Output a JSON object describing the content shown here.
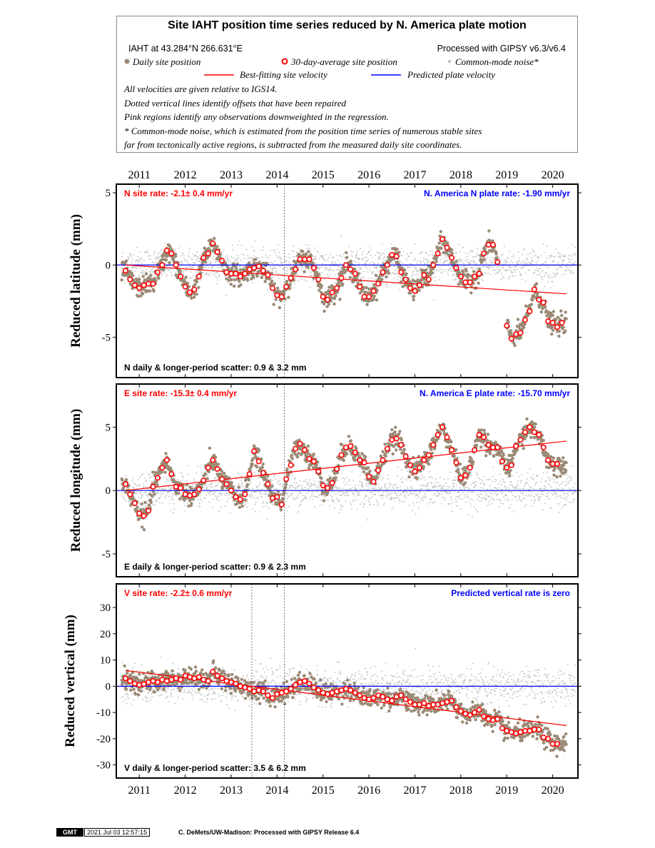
{
  "header": {
    "title": "Site IAHT position time series reduced by N. America plate motion",
    "site_location": "IAHT at 43.284°N 266.631°E",
    "processing": "Processed with GIPSY v6.3/v6.4",
    "legend": {
      "daily": "Daily site position",
      "average": "30-day-average site position",
      "common_mode": "Common-mode noise*",
      "best_fit": "Best-fitting site velocity",
      "predicted": "Predicted plate velocity"
    },
    "notes": [
      "All velocities are given relative to IGS14.",
      "Dotted vertical lines identify offsets that have been repaired",
      "Pink regions identify any observations downweighted in the regression.",
      "* Common-mode noise, which is estimated from the position time series of numerous stable sites",
      "far from tectonically active regions, is subtracted from the measured daily site coordinates."
    ]
  },
  "colors": {
    "daily": "#9b8a76",
    "common_mode": "#bdbdbd",
    "average_stroke": "#ff0000",
    "best_fit": "#ff0000",
    "predicted": "#0000ff",
    "rate_label": "#ff0000",
    "plate_label": "#0000ff"
  },
  "chart_data": [
    {
      "type": "scatter",
      "component": "N",
      "ylabel": "Reduced latitude (mm)",
      "site_rate": "N site rate:  -2.1± 0.4 mm/yr",
      "plate_rate": "N. America N plate rate: -1.90 mm/yr",
      "scatter": "N daily & longer-period scatter:   0.9 &   3.2 mm",
      "xlim": [
        2010.5,
        2020.55
      ],
      "ylim": [
        -7.8,
        5.6
      ],
      "yticks": [
        -5,
        0,
        5
      ],
      "xticks": [
        2011,
        2012,
        2013,
        2014,
        2015,
        2016,
        2017,
        2018,
        2019,
        2020
      ],
      "offsets": [
        2014.16
      ],
      "best_fit": [
        [
          2010.7,
          0.0
        ],
        [
          2020.3,
          -2.0
        ]
      ],
      "predicted": [
        [
          2010.5,
          0.0
        ],
        [
          2020.55,
          0.0
        ]
      ],
      "averages": [
        [
          2010.7,
          -0.4
        ],
        [
          2010.8,
          -1.0
        ],
        [
          2010.9,
          -1.4
        ],
        [
          2011.0,
          -1.6
        ],
        [
          2011.1,
          -1.4
        ],
        [
          2011.2,
          -1.3
        ],
        [
          2011.3,
          -1.3
        ],
        [
          2011.4,
          -0.5
        ],
        [
          2011.5,
          0.0
        ],
        [
          2011.6,
          1.0
        ],
        [
          2011.7,
          0.8
        ],
        [
          2011.8,
          0.0
        ],
        [
          2011.9,
          -0.8
        ],
        [
          2012.0,
          -1.5
        ],
        [
          2012.1,
          -1.9
        ],
        [
          2012.2,
          -1.7
        ],
        [
          2012.3,
          -0.8
        ],
        [
          2012.4,
          0.5
        ],
        [
          2012.5,
          0.8
        ],
        [
          2012.6,
          1.5
        ],
        [
          2012.7,
          0.9
        ],
        [
          2012.8,
          0.3
        ],
        [
          2012.9,
          -0.5
        ],
        [
          2013.0,
          -0.6
        ],
        [
          2013.1,
          -0.6
        ],
        [
          2013.2,
          -0.8
        ],
        [
          2013.3,
          -0.6
        ],
        [
          2013.4,
          -0.3
        ],
        [
          2013.5,
          -0.2
        ],
        [
          2013.6,
          -0.1
        ],
        [
          2013.7,
          -0.4
        ],
        [
          2013.8,
          -0.7
        ],
        [
          2013.9,
          -1.6
        ],
        [
          2014.0,
          -2.1
        ],
        [
          2014.1,
          -2.2
        ],
        [
          2014.2,
          -1.5
        ],
        [
          2014.3,
          -0.9
        ],
        [
          2014.4,
          -0.3
        ],
        [
          2014.5,
          0.4
        ],
        [
          2014.6,
          0.4
        ],
        [
          2014.7,
          0.4
        ],
        [
          2014.8,
          -0.2
        ],
        [
          2014.9,
          -1.0
        ],
        [
          2015.0,
          -2.2
        ],
        [
          2015.1,
          -2.4
        ],
        [
          2015.2,
          -1.9
        ],
        [
          2015.3,
          -1.6
        ],
        [
          2015.4,
          -0.9
        ],
        [
          2015.5,
          0.0
        ],
        [
          2015.6,
          -0.3
        ],
        [
          2015.7,
          -0.6
        ],
        [
          2015.8,
          -1.5
        ],
        [
          2015.9,
          -2.2
        ],
        [
          2016.0,
          -2.2
        ],
        [
          2016.1,
          -1.8
        ],
        [
          2016.2,
          -1.3
        ],
        [
          2016.3,
          -0.5
        ],
        [
          2016.4,
          0.0
        ],
        [
          2016.5,
          0.7
        ],
        [
          2016.6,
          0.6
        ],
        [
          2016.7,
          -0.5
        ],
        [
          2016.8,
          -1.0
        ],
        [
          2016.9,
          -1.6
        ],
        [
          2017.0,
          -1.8
        ],
        [
          2017.1,
          -1.4
        ],
        [
          2017.2,
          -0.7
        ],
        [
          2017.3,
          -1.0
        ],
        [
          2017.4,
          0.0
        ],
        [
          2017.5,
          0.8
        ],
        [
          2017.6,
          1.8
        ],
        [
          2017.7,
          1.2
        ],
        [
          2017.8,
          0.5
        ],
        [
          2017.9,
          -0.2
        ],
        [
          2018.0,
          -0.8
        ],
        [
          2018.1,
          -1.2
        ],
        [
          2018.2,
          -1.2
        ],
        [
          2018.3,
          -0.8
        ],
        [
          2018.4,
          -0.6
        ],
        [
          2018.5,
          0.8
        ],
        [
          2018.6,
          1.4
        ],
        [
          2018.7,
          1.4
        ],
        [
          2018.8,
          0.2
        ],
        [
          2019.0,
          -4.2
        ],
        [
          2019.1,
          -5.1
        ],
        [
          2019.2,
          -4.8
        ],
        [
          2019.3,
          -4.7
        ],
        [
          2019.4,
          -3.8
        ],
        [
          2019.5,
          -3.2
        ],
        [
          2019.6,
          -1.7
        ],
        [
          2019.7,
          -2.4
        ],
        [
          2019.8,
          -2.6
        ],
        [
          2019.9,
          -3.9
        ],
        [
          2020.0,
          -4.0
        ],
        [
          2020.1,
          -4.3
        ],
        [
          2020.2,
          -4.0
        ]
      ]
    },
    {
      "type": "scatter",
      "component": "E",
      "ylabel": "Reduced longitude (mm)",
      "site_rate": "E site rate:  -15.3± 0.4 mm/yr",
      "plate_rate": "N. America E plate rate: -15.70 mm/yr",
      "scatter": "E daily & longer-period scatter:   0.9 &   2.3 mm",
      "xlim": [
        2010.5,
        2020.55
      ],
      "ylim": [
        -6.8,
        8.4
      ],
      "yticks": [
        -5,
        0,
        5
      ],
      "xticks": [
        2011,
        2012,
        2013,
        2014,
        2015,
        2016,
        2017,
        2018,
        2019,
        2020
      ],
      "offsets": [
        2014.16
      ],
      "best_fit": [
        [
          2010.7,
          0.0
        ],
        [
          2020.3,
          3.9
        ]
      ],
      "predicted": [
        [
          2010.5,
          0.0
        ],
        [
          2020.55,
          0.0
        ]
      ],
      "averages": [
        [
          2010.7,
          0.5
        ],
        [
          2010.8,
          -0.3
        ],
        [
          2010.9,
          -1.0
        ],
        [
          2011.0,
          -1.8
        ],
        [
          2011.1,
          -2.0
        ],
        [
          2011.2,
          -1.6
        ],
        [
          2011.3,
          0.3
        ],
        [
          2011.4,
          1.0
        ],
        [
          2011.5,
          1.8
        ],
        [
          2011.6,
          2.4
        ],
        [
          2011.7,
          1.3
        ],
        [
          2011.8,
          0.3
        ],
        [
          2011.9,
          0.2
        ],
        [
          2012.0,
          -0.3
        ],
        [
          2012.1,
          -0.4
        ],
        [
          2012.2,
          -0.3
        ],
        [
          2012.3,
          0.1
        ],
        [
          2012.4,
          0.8
        ],
        [
          2012.5,
          1.8
        ],
        [
          2012.6,
          2.4
        ],
        [
          2012.7,
          1.7
        ],
        [
          2012.8,
          0.9
        ],
        [
          2012.9,
          0.5
        ],
        [
          2013.0,
          0.0
        ],
        [
          2013.1,
          -0.5
        ],
        [
          2013.2,
          -0.7
        ],
        [
          2013.3,
          -0.3
        ],
        [
          2013.4,
          1.3
        ],
        [
          2013.5,
          3.1
        ],
        [
          2013.6,
          2.3
        ],
        [
          2013.7,
          1.4
        ],
        [
          2013.8,
          0.5
        ],
        [
          2013.9,
          -0.6
        ],
        [
          2014.0,
          -0.5
        ],
        [
          2014.1,
          -1.1
        ],
        [
          2014.2,
          0.9
        ],
        [
          2014.3,
          2.0
        ],
        [
          2014.4,
          3.3
        ],
        [
          2014.5,
          3.7
        ],
        [
          2014.6,
          3.2
        ],
        [
          2014.7,
          2.5
        ],
        [
          2014.8,
          2.3
        ],
        [
          2014.9,
          1.5
        ],
        [
          2015.0,
          0.4
        ],
        [
          2015.1,
          0.2
        ],
        [
          2015.2,
          0.6
        ],
        [
          2015.3,
          1.7
        ],
        [
          2015.4,
          2.8
        ],
        [
          2015.5,
          3.4
        ],
        [
          2015.6,
          3.5
        ],
        [
          2015.7,
          3.0
        ],
        [
          2015.8,
          2.4
        ],
        [
          2015.9,
          2.2
        ],
        [
          2016.0,
          1.1
        ],
        [
          2016.1,
          0.7
        ],
        [
          2016.2,
          1.6
        ],
        [
          2016.3,
          2.4
        ],
        [
          2016.4,
          3.3
        ],
        [
          2016.5,
          4.0
        ],
        [
          2016.6,
          4.1
        ],
        [
          2016.7,
          3.6
        ],
        [
          2016.8,
          2.7
        ],
        [
          2016.9,
          2.0
        ],
        [
          2017.0,
          1.5
        ],
        [
          2017.1,
          1.8
        ],
        [
          2017.2,
          2.4
        ],
        [
          2017.3,
          2.8
        ],
        [
          2017.4,
          3.6
        ],
        [
          2017.5,
          4.4
        ],
        [
          2017.6,
          5.0
        ],
        [
          2017.7,
          4.2
        ],
        [
          2017.8,
          3.2
        ],
        [
          2017.9,
          2.2
        ],
        [
          2018.0,
          1.0
        ],
        [
          2018.1,
          1.2
        ],
        [
          2018.2,
          1.8
        ],
        [
          2018.3,
          3.2
        ],
        [
          2018.4,
          4.4
        ],
        [
          2018.5,
          4.2
        ],
        [
          2018.6,
          3.6
        ],
        [
          2018.7,
          3.4
        ],
        [
          2018.8,
          3.4
        ],
        [
          2018.9,
          2.3
        ],
        [
          2019.0,
          1.8
        ],
        [
          2019.1,
          2.0
        ],
        [
          2019.2,
          3.5
        ],
        [
          2019.3,
          4.0
        ],
        [
          2019.4,
          4.6
        ],
        [
          2019.5,
          5.0
        ],
        [
          2019.6,
          4.6
        ],
        [
          2019.7,
          4.4
        ],
        [
          2019.8,
          3.4
        ],
        [
          2019.9,
          2.4
        ],
        [
          2020.0,
          2.1
        ],
        [
          2020.1,
          2.1
        ]
      ]
    },
    {
      "type": "scatter",
      "component": "V",
      "ylabel": "Reduced vertical (mm)",
      "site_rate": "V site rate:  -2.2± 0.6 mm/yr",
      "plate_rate": "Predicted vertical rate is zero",
      "scatter": "V daily & longer-period scatter:   3.5 &   6.2 mm",
      "xlim": [
        2010.5,
        2020.55
      ],
      "ylim": [
        -35,
        39
      ],
      "yticks": [
        -30,
        -20,
        -10,
        0,
        10,
        20,
        30
      ],
      "xticks": [
        2011,
        2012,
        2013,
        2014,
        2015,
        2016,
        2017,
        2018,
        2019,
        2020
      ],
      "offsets": [
        2013.45,
        2014.16
      ],
      "best_fit": [
        [
          2010.7,
          6.0
        ],
        [
          2020.3,
          -15.0
        ]
      ],
      "predicted": [
        [
          2010.5,
          0.0
        ],
        [
          2020.55,
          0.0
        ]
      ],
      "averages": [
        [
          2010.7,
          3.0
        ],
        [
          2010.8,
          2.0
        ],
        [
          2010.9,
          1.0
        ],
        [
          2011.0,
          0.5
        ],
        [
          2011.1,
          0.8
        ],
        [
          2011.2,
          1.5
        ],
        [
          2011.3,
          2.0
        ],
        [
          2011.4,
          1.5
        ],
        [
          2011.5,
          2.5
        ],
        [
          2011.6,
          2.0
        ],
        [
          2011.7,
          2.5
        ],
        [
          2011.8,
          3.0
        ],
        [
          2011.9,
          2.5
        ],
        [
          2012.0,
          4.0
        ],
        [
          2012.1,
          3.5
        ],
        [
          2012.2,
          3.0
        ],
        [
          2012.3,
          3.5
        ],
        [
          2012.4,
          2.5
        ],
        [
          2012.5,
          2.0
        ],
        [
          2012.6,
          5.5
        ],
        [
          2012.7,
          4.0
        ],
        [
          2012.8,
          3.0
        ],
        [
          2012.9,
          2.0
        ],
        [
          2013.0,
          1.5
        ],
        [
          2013.1,
          1.0
        ],
        [
          2013.2,
          0.0
        ],
        [
          2013.3,
          -0.5
        ],
        [
          2013.4,
          -1.0
        ],
        [
          2013.5,
          -2.0
        ],
        [
          2013.6,
          -1.5
        ],
        [
          2013.7,
          -2.0
        ],
        [
          2013.8,
          -3.5
        ],
        [
          2013.9,
          -4.5
        ],
        [
          2014.0,
          -3.0
        ],
        [
          2014.1,
          -2.5
        ],
        [
          2014.2,
          -2.0
        ],
        [
          2014.3,
          -1.0
        ],
        [
          2014.4,
          0.5
        ],
        [
          2014.5,
          1.5
        ],
        [
          2014.6,
          2.0
        ],
        [
          2014.7,
          1.0
        ],
        [
          2014.8,
          -0.5
        ],
        [
          2014.9,
          -1.5
        ],
        [
          2015.0,
          -2.5
        ],
        [
          2015.1,
          -3.0
        ],
        [
          2015.2,
          -2.5
        ],
        [
          2015.3,
          -2.0
        ],
        [
          2015.4,
          -1.5
        ],
        [
          2015.5,
          -1.0
        ],
        [
          2015.6,
          -1.5
        ],
        [
          2015.7,
          -2.5
        ],
        [
          2015.8,
          -3.5
        ],
        [
          2015.9,
          -4.5
        ],
        [
          2016.0,
          -5.0
        ],
        [
          2016.1,
          -4.5
        ],
        [
          2016.2,
          -3.5
        ],
        [
          2016.3,
          -4.0
        ],
        [
          2016.4,
          -5.0
        ],
        [
          2016.5,
          -5.5
        ],
        [
          2016.6,
          -4.0
        ],
        [
          2016.7,
          -3.5
        ],
        [
          2016.8,
          -5.0
        ],
        [
          2016.9,
          -6.0
        ],
        [
          2017.0,
          -7.0
        ],
        [
          2017.1,
          -7.0
        ],
        [
          2017.2,
          -6.5
        ],
        [
          2017.3,
          -7.5
        ],
        [
          2017.4,
          -7.0
        ],
        [
          2017.5,
          -7.0
        ],
        [
          2017.6,
          -6.5
        ],
        [
          2017.7,
          -6.0
        ],
        [
          2017.8,
          -5.5
        ],
        [
          2017.9,
          -8.0
        ],
        [
          2018.0,
          -9.5
        ],
        [
          2018.1,
          -10.5
        ],
        [
          2018.2,
          -11.0
        ],
        [
          2018.3,
          -10.0
        ],
        [
          2018.4,
          -9.0
        ],
        [
          2018.5,
          -11.5
        ],
        [
          2018.6,
          -12.5
        ],
        [
          2018.7,
          -13.0
        ],
        [
          2018.8,
          -12.5
        ],
        [
          2018.9,
          -16.0
        ],
        [
          2019.0,
          -17.0
        ],
        [
          2019.1,
          -17.5
        ],
        [
          2019.2,
          -18.0
        ],
        [
          2019.3,
          -17.5
        ],
        [
          2019.4,
          -17.0
        ],
        [
          2019.5,
          -17.0
        ],
        [
          2019.6,
          -16.5
        ],
        [
          2019.7,
          -16.5
        ],
        [
          2019.8,
          -19.5
        ],
        [
          2019.9,
          -20.0
        ],
        [
          2020.0,
          -22.0
        ],
        [
          2020.1,
          -22.0
        ]
      ]
    }
  ],
  "footer": {
    "logo": "GMT",
    "timestamp": "2021 Jul 03 12:57:15",
    "credit": "C. DeMets/UW-Madison: Processed with GIPSY Release 6.4"
  }
}
